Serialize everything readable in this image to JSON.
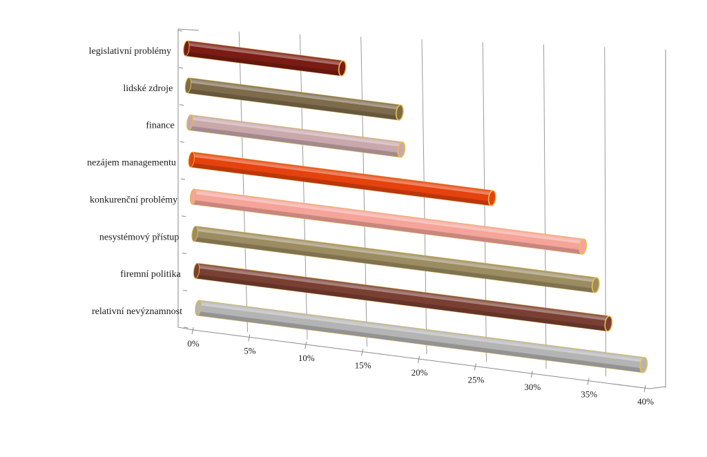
{
  "chart_data": {
    "type": "bar",
    "orientation": "horizontal",
    "style": "3d-cylinder",
    "title": "",
    "xlabel": "",
    "ylabel": "",
    "categories": [
      "legislativní problémy",
      "lidské zdroje",
      "finance",
      "nezájem managementu",
      "konkurenční problémy",
      "nesystémový přístup",
      "firemní politika",
      "relativní nevýznamnost"
    ],
    "values": [
      14,
      19,
      19,
      27,
      35,
      36,
      37,
      40
    ],
    "bar_colors": [
      "#7a1c14",
      "#7d6b4c",
      "#c9a8ac",
      "#e5420e",
      "#f5a49a",
      "#9c8c62",
      "#7a3f33",
      "#b4b4b4"
    ],
    "xlim": [
      0,
      40
    ],
    "x_ticks": [
      "0%",
      "5%",
      "10%",
      "15%",
      "20%",
      "25%",
      "30%",
      "35%",
      "40%"
    ],
    "grid": true,
    "legend": "none"
  }
}
